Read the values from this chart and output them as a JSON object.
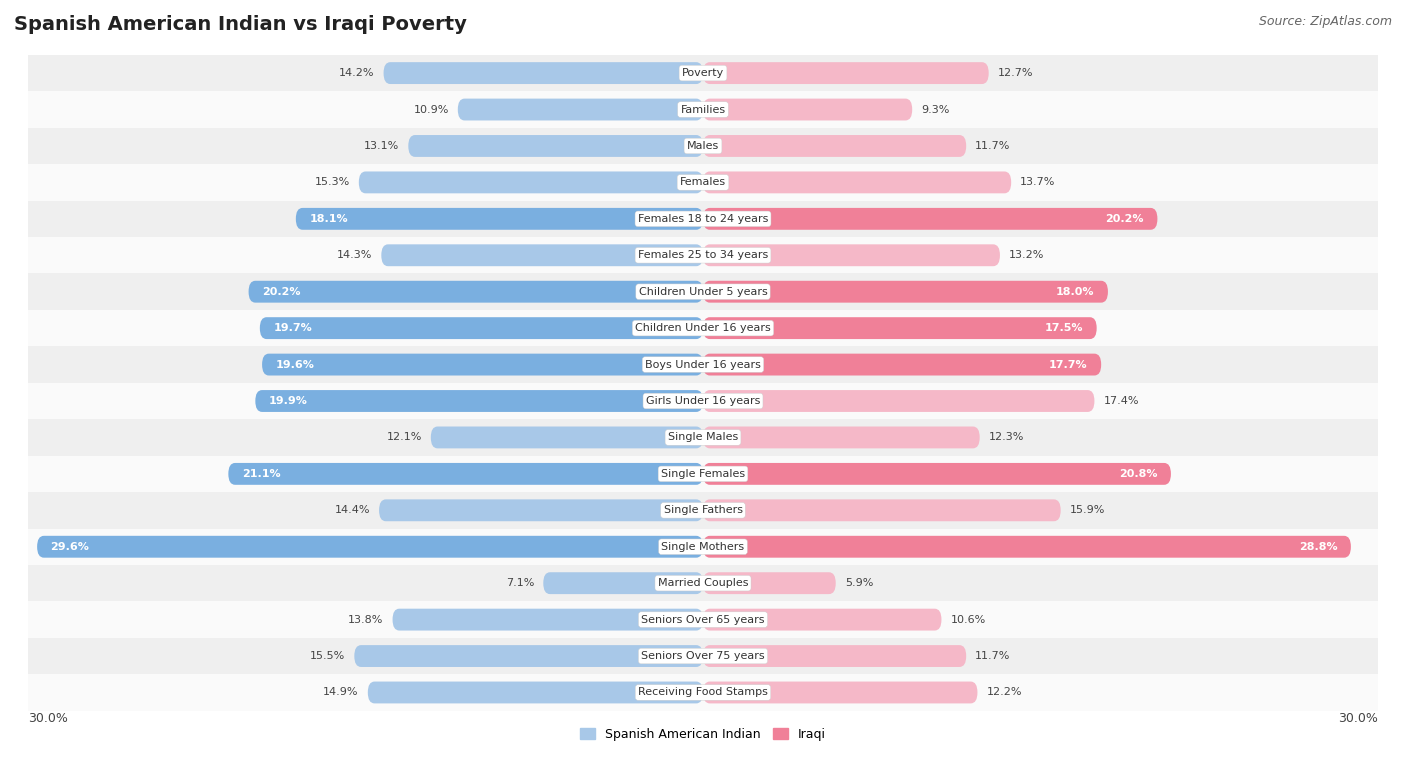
{
  "title": "Spanish American Indian vs Iraqi Poverty",
  "source": "Source: ZipAtlas.com",
  "categories": [
    "Poverty",
    "Families",
    "Males",
    "Females",
    "Females 18 to 24 years",
    "Females 25 to 34 years",
    "Children Under 5 years",
    "Children Under 16 years",
    "Boys Under 16 years",
    "Girls Under 16 years",
    "Single Males",
    "Single Females",
    "Single Fathers",
    "Single Mothers",
    "Married Couples",
    "Seniors Over 65 years",
    "Seniors Over 75 years",
    "Receiving Food Stamps"
  ],
  "spanish_values": [
    14.2,
    10.9,
    13.1,
    15.3,
    18.1,
    14.3,
    20.2,
    19.7,
    19.6,
    19.9,
    12.1,
    21.1,
    14.4,
    29.6,
    7.1,
    13.8,
    15.5,
    14.9
  ],
  "iraqi_values": [
    12.7,
    9.3,
    11.7,
    13.7,
    20.2,
    13.2,
    18.0,
    17.5,
    17.7,
    17.4,
    12.3,
    20.8,
    15.9,
    28.8,
    5.9,
    10.6,
    11.7,
    12.2
  ],
  "max_val": 30.0,
  "spanish_color_normal": "#A8C8E8",
  "spanish_color_highlight": "#7AAFE0",
  "iraqi_color_normal": "#F5B8C8",
  "iraqi_color_highlight": "#F08098",
  "highlight_threshold": 17.5,
  "bg_color": "#FFFFFF",
  "row_even_color": "#EFEFEF",
  "row_odd_color": "#FAFAFA",
  "title_fontsize": 14,
  "source_fontsize": 9,
  "bar_label_fontsize": 8,
  "cat_label_fontsize": 8,
  "legend_fontsize": 9
}
